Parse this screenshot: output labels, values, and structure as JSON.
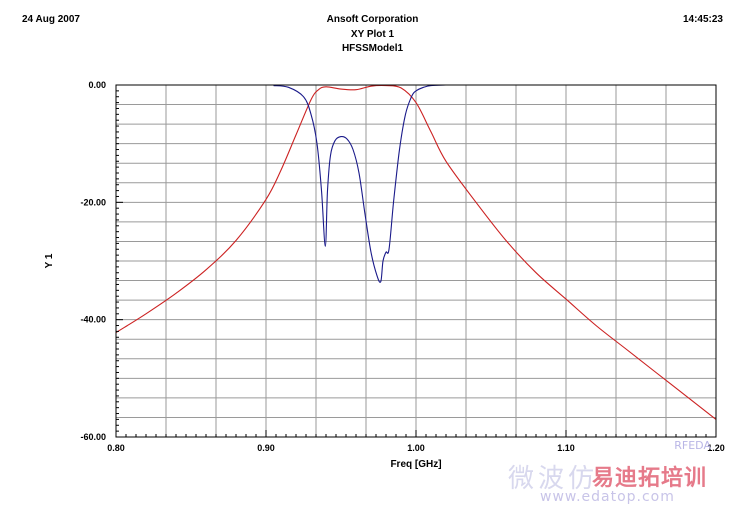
{
  "header": {
    "date": "24 Aug 2007",
    "company": "Ansoft Corporation",
    "time": "14:45:23"
  },
  "watermark": {
    "rfeda": "RFEDA",
    "chinese": "微波仿",
    "brand": "易迪拓培训",
    "url": "www.edatop.com"
  },
  "chart_data": {
    "type": "line",
    "title": "XY Plot 1",
    "subtitle": "HFSSModel1",
    "xlabel": "Freq [GHz]",
    "ylabel": "Y 1",
    "xlim": [
      0.8,
      1.2
    ],
    "ylim": [
      -60,
      0
    ],
    "grid": true,
    "x_tick_labels": [
      "0.80",
      "0.90",
      "1.00",
      "1.10",
      "1.20"
    ],
    "y_tick_labels": [
      "0.00",
      "-20.00",
      "-40.00",
      "-60.00"
    ],
    "series": [
      {
        "color": "#cc2222",
        "x": [
          0.8,
          0.82,
          0.84,
          0.86,
          0.88,
          0.9,
          0.91,
          0.92,
          0.93,
          0.935,
          0.94,
          0.95,
          0.96,
          0.97,
          0.98,
          0.99,
          1.0,
          1.01,
          1.02,
          1.04,
          1.06,
          1.08,
          1.1,
          1.12,
          1.14,
          1.16,
          1.18,
          1.2
        ],
        "y": [
          -42.2,
          -39.0,
          -35.5,
          -31.5,
          -26.5,
          -19.5,
          -14.5,
          -8.5,
          -2.5,
          -0.8,
          -0.3,
          -0.7,
          -0.8,
          -0.2,
          -0.1,
          -0.5,
          -3.0,
          -8.0,
          -13.0,
          -20.0,
          -26.5,
          -32.0,
          -36.5,
          -41.0,
          -45.0,
          -49.0,
          -53.0,
          -57.0
        ]
      },
      {
        "color": "#1a1a8a",
        "x": [
          0.905,
          0.915,
          0.925,
          0.93,
          0.934,
          0.937,
          0.9395,
          0.941,
          0.943,
          0.946,
          0.95,
          0.954,
          0.958,
          0.962,
          0.966,
          0.97,
          0.974,
          0.9765,
          0.978,
          0.98,
          0.982,
          0.985,
          0.989,
          0.993,
          0.997,
          1.0,
          1.005,
          1.01,
          1.02
        ],
        "y": [
          -0.1,
          -0.4,
          -2.0,
          -5.0,
          -10.0,
          -18.0,
          -27.5,
          -18.0,
          -12.0,
          -9.5,
          -8.8,
          -9.2,
          -11.0,
          -15.0,
          -22.0,
          -28.5,
          -32.5,
          -33.5,
          -30.0,
          -28.5,
          -28.0,
          -20.0,
          -11.0,
          -5.0,
          -2.0,
          -1.0,
          -0.4,
          -0.1,
          0.0
        ]
      }
    ]
  }
}
